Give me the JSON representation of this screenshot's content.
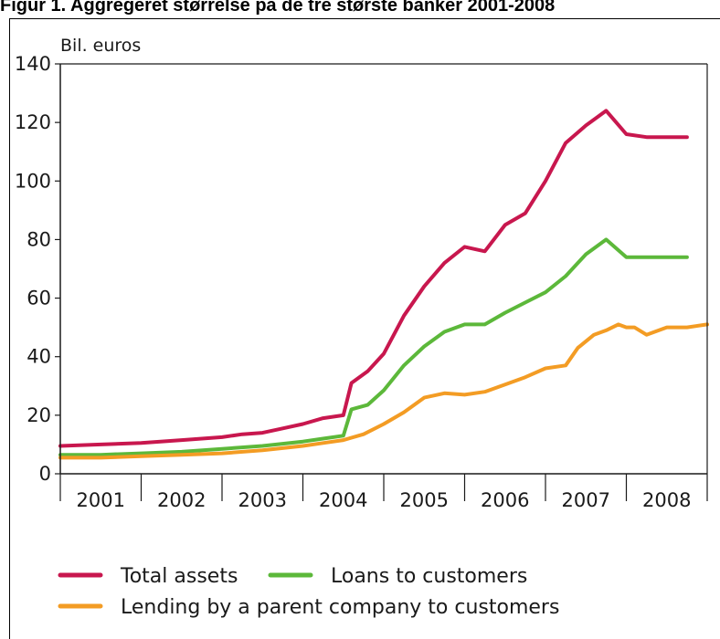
{
  "figure_title": "Figur 1. Aggregeret størrelse på de tre største banker 2001-2008",
  "chart_data": {
    "type": "line",
    "title": "",
    "ylabel": "Bil. euros",
    "xlabel": "",
    "ylim": [
      0,
      140
    ],
    "xlim": [
      2001.0,
      2009.0
    ],
    "yticks": [
      "0",
      "20",
      "40",
      "60",
      "80",
      "100",
      "120",
      "140"
    ],
    "categories": [
      "2001",
      "2002",
      "2003",
      "2004",
      "2005",
      "2006",
      "2007",
      "2008"
    ],
    "grid": false,
    "legend_position": "bottom",
    "series": [
      {
        "name": "Total assets",
        "color": "#c8174e",
        "x": [
          2001.0,
          2001.5,
          2002.0,
          2002.5,
          2003.0,
          2003.25,
          2003.5,
          2003.75,
          2004.0,
          2004.25,
          2004.5,
          2004.6,
          2004.8,
          2005.0,
          2005.25,
          2005.5,
          2005.75,
          2006.0,
          2006.25,
          2006.5,
          2006.75,
          2007.0,
          2007.25,
          2007.5,
          2007.75,
          2008.0,
          2008.25,
          2008.5,
          2008.75
        ],
        "y": [
          9.5,
          10,
          10.5,
          11.5,
          12.5,
          13.5,
          14,
          15.5,
          17,
          19,
          20,
          31,
          35,
          41,
          54,
          64,
          72,
          77.5,
          76,
          85,
          89,
          100,
          113,
          119,
          124,
          116,
          115,
          115,
          115
        ]
      },
      {
        "name": "Loans to customers",
        "color": "#5cb83a",
        "x": [
          2001.0,
          2001.5,
          2002.0,
          2002.5,
          2003.0,
          2003.5,
          2004.0,
          2004.25,
          2004.5,
          2004.6,
          2004.8,
          2005.0,
          2005.25,
          2005.5,
          2005.75,
          2006.0,
          2006.25,
          2006.5,
          2006.75,
          2007.0,
          2007.25,
          2007.5,
          2007.75,
          2008.0,
          2008.25,
          2008.5,
          2008.75
        ],
        "y": [
          6.5,
          6.5,
          7,
          7.5,
          8.5,
          9.5,
          11,
          12,
          13,
          22,
          23.5,
          28.5,
          37,
          43.5,
          48.5,
          51,
          51,
          55,
          58.5,
          62,
          67.5,
          75,
          80,
          74,
          74,
          74,
          74
        ]
      },
      {
        "name": "Lending by a parent company to customers",
        "color": "#f39c24",
        "x": [
          2001.0,
          2001.5,
          2002.0,
          2002.5,
          2003.0,
          2003.5,
          2004.0,
          2004.25,
          2004.5,
          2004.75,
          2005.0,
          2005.25,
          2005.5,
          2005.75,
          2006.0,
          2006.25,
          2006.5,
          2006.75,
          2007.0,
          2007.25,
          2007.4,
          2007.6,
          2007.75,
          2007.9,
          2008.0,
          2008.1,
          2008.25,
          2008.5,
          2008.75,
          2009.0
        ],
        "y": [
          5.5,
          5.5,
          6,
          6.5,
          7,
          8,
          9.5,
          10.5,
          11.5,
          13.5,
          17,
          21,
          26,
          27.5,
          27,
          28,
          30.5,
          33,
          36,
          37,
          43,
          47.5,
          49,
          51,
          50,
          50,
          47.5,
          50,
          50,
          51
        ]
      }
    ]
  }
}
